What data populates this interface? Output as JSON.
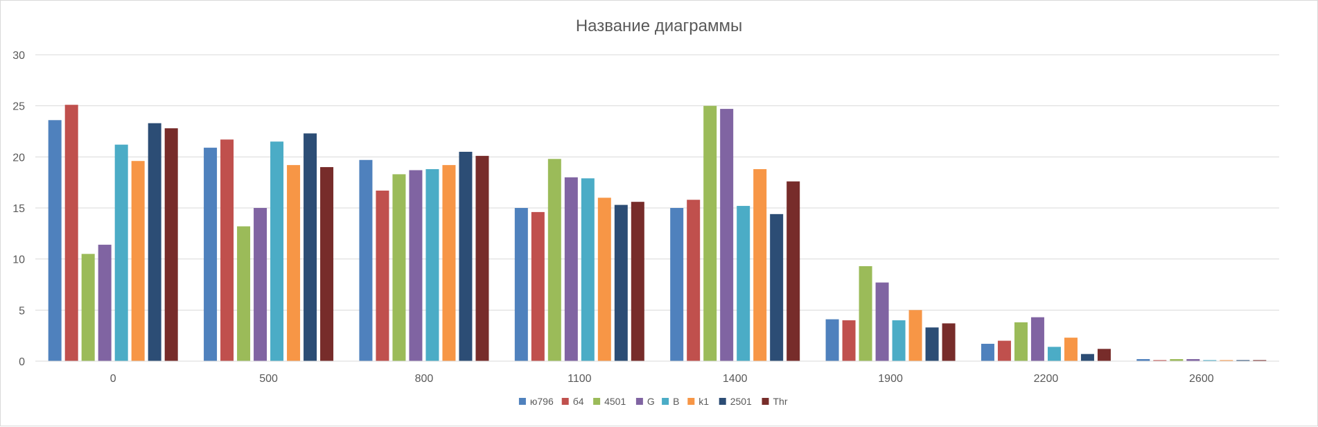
{
  "chart_data": {
    "type": "bar",
    "title": "Название диаграммы",
    "xlabel": "",
    "ylabel": "",
    "ylim": [
      0,
      30
    ],
    "yticks": [
      0,
      5,
      10,
      15,
      20,
      25,
      30
    ],
    "grid": true,
    "legend_position": "bottom",
    "categories": [
      "0",
      "500",
      "800",
      "1100",
      "1400",
      "1900",
      "2200",
      "2600"
    ],
    "series": [
      {
        "name": "ю796",
        "color": "#4f81bd",
        "values": [
          23.6,
          20.9,
          19.7,
          15.0,
          15.0,
          4.1,
          1.7,
          0.2
        ]
      },
      {
        "name": "б4",
        "color": "#c0504d",
        "values": [
          25.1,
          21.7,
          16.7,
          14.6,
          15.8,
          4.0,
          2.0,
          0.1
        ]
      },
      {
        "name": "4501",
        "color": "#9bbb59",
        "values": [
          10.5,
          13.2,
          18.3,
          19.8,
          25.0,
          9.3,
          3.8,
          0.2
        ]
      },
      {
        "name": "G",
        "color": "#8064a2",
        "values": [
          11.4,
          15.0,
          18.7,
          18.0,
          24.7,
          7.7,
          4.3,
          0.2
        ]
      },
      {
        "name": "B",
        "color": "#4bacc6",
        "values": [
          21.2,
          21.5,
          18.8,
          17.9,
          15.2,
          4.0,
          1.4,
          0.1
        ]
      },
      {
        "name": "k1",
        "color": "#f79646",
        "values": [
          19.6,
          19.2,
          19.2,
          16.0,
          18.8,
          5.0,
          2.3,
          0.1
        ]
      },
      {
        "name": "2501",
        "color": "#2c4d75",
        "values": [
          23.3,
          22.3,
          20.5,
          15.3,
          14.4,
          3.3,
          0.7,
          0.1
        ]
      },
      {
        "name": "Thr",
        "color": "#772c2a",
        "values": [
          22.8,
          19.0,
          20.1,
          15.6,
          17.6,
          3.7,
          1.2,
          0.1
        ]
      }
    ]
  }
}
